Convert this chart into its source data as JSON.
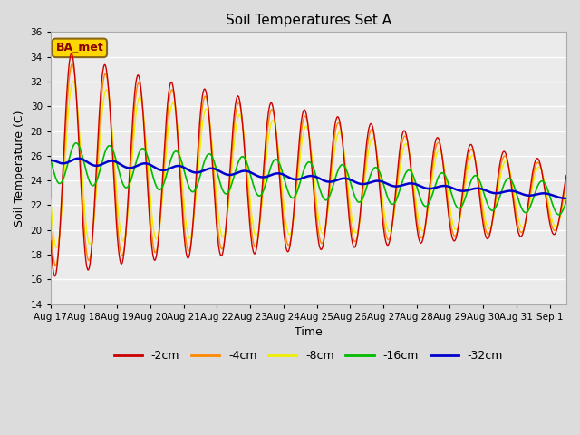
{
  "title": "Soil Temperatures Set A",
  "xlabel": "Time",
  "ylabel": "Soil Temperature (C)",
  "ylim": [
    14,
    36
  ],
  "yticks": [
    14,
    16,
    18,
    20,
    22,
    24,
    26,
    28,
    30,
    32,
    34,
    36
  ],
  "annotation_text": "BA_met",
  "annotation_color": "#8B0000",
  "annotation_bg": "#FFD700",
  "annotation_edge": "#8B6914",
  "colors": {
    "-2cm": "#CC0000",
    "-4cm": "#FF8800",
    "-8cm": "#EEEE00",
    "-16cm": "#00BB00",
    "-32cm": "#0000CC"
  },
  "legend_labels": [
    "-2cm",
    "-4cm",
    "-8cm",
    "-16cm",
    "-32cm"
  ],
  "fig_bg_color": "#DCDCDC",
  "plot_bg_color": "#EBEBEB",
  "grid_color": "#FFFFFF",
  "start_day": 17,
  "total_days": 15.5
}
